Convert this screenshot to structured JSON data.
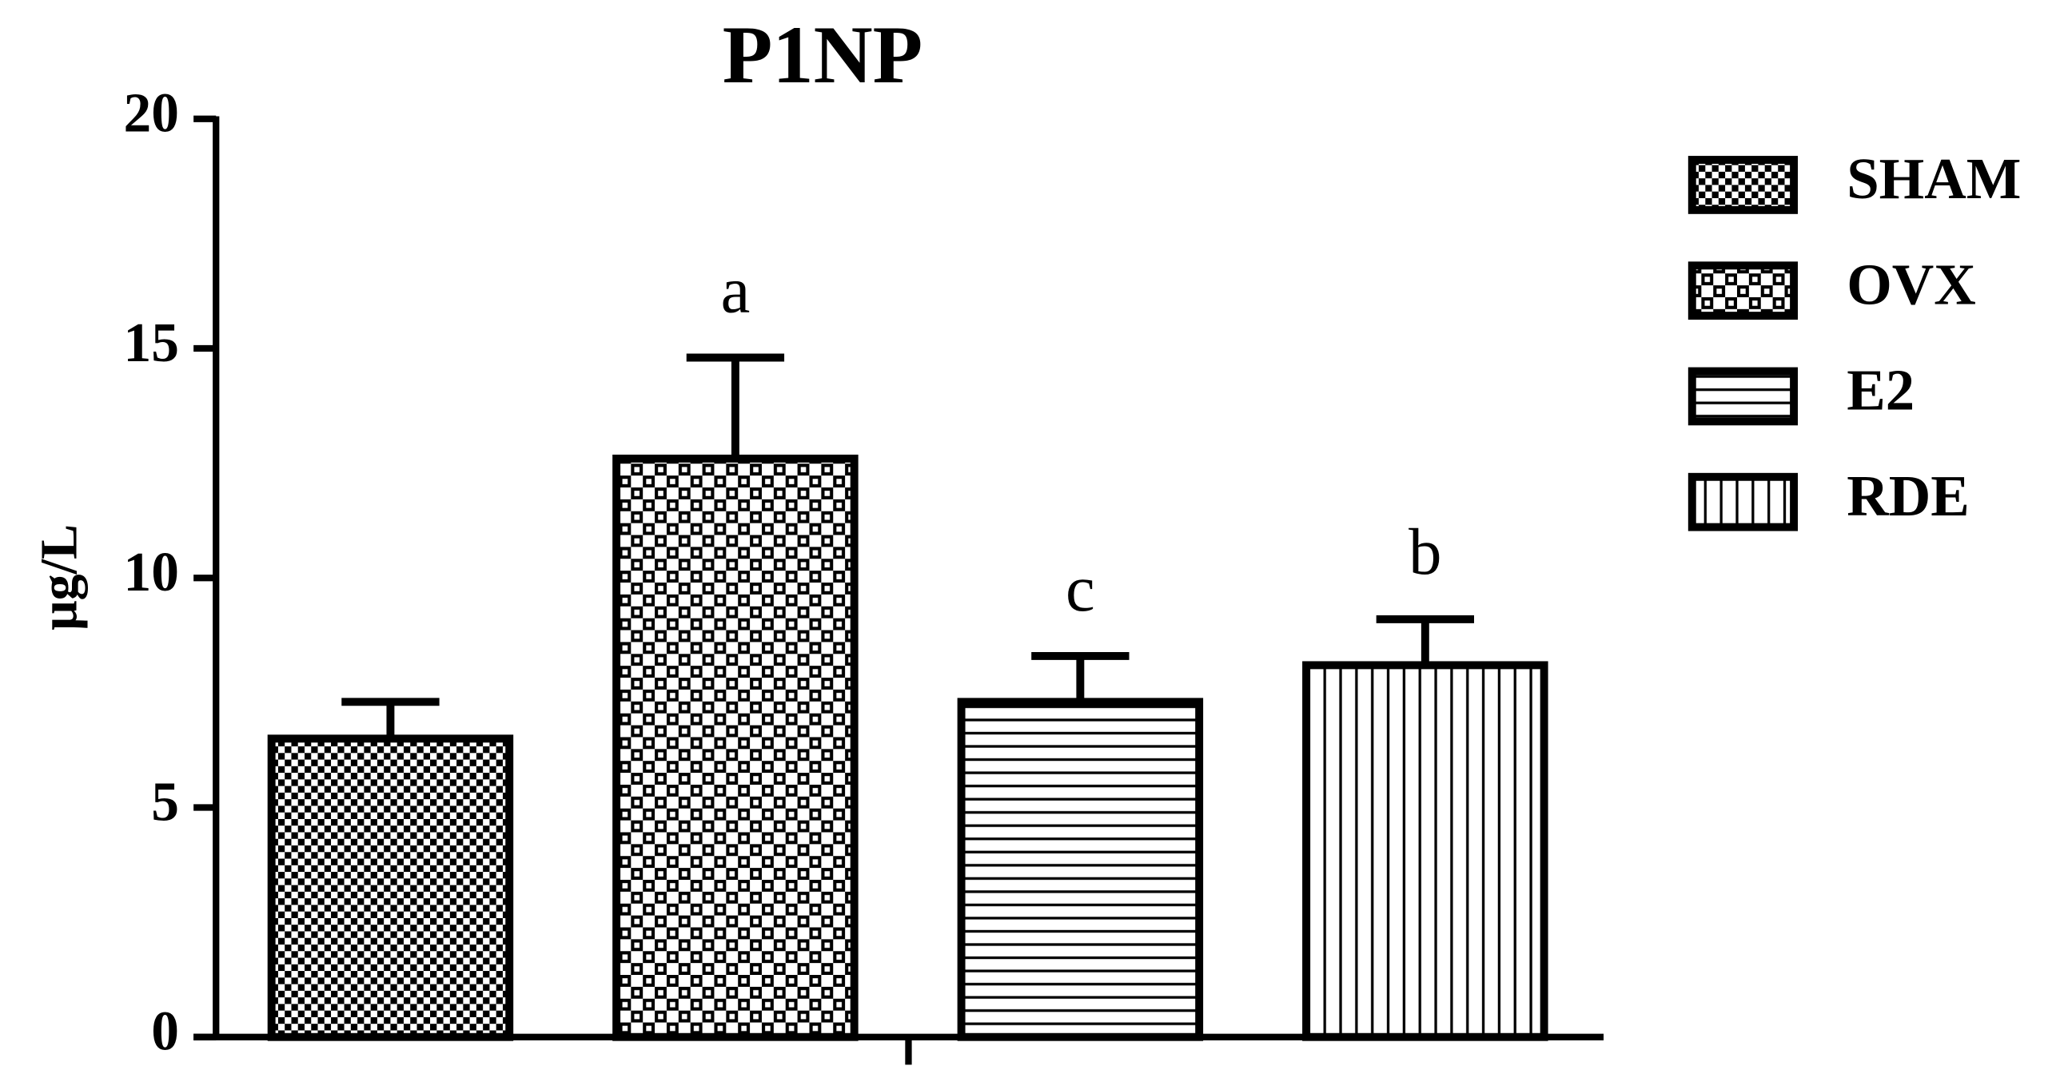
{
  "chart_data": {
    "type": "bar",
    "title": "P1NP",
    "y_label": "μg/L",
    "categories": [
      "SHAM",
      "OVX",
      "E2",
      "RDE"
    ],
    "values": [
      6.5,
      12.6,
      7.3,
      8.1
    ],
    "errors": [
      0.8,
      2.2,
      1.0,
      1.0
    ],
    "annotations": [
      null,
      "a",
      "c",
      "b"
    ],
    "patterns": [
      "fine-checker",
      "checker",
      "horizontal",
      "vertical"
    ],
    "ylim": [
      0,
      20
    ],
    "yticks": [
      0,
      5,
      10,
      15,
      20
    ],
    "legend": "right"
  }
}
